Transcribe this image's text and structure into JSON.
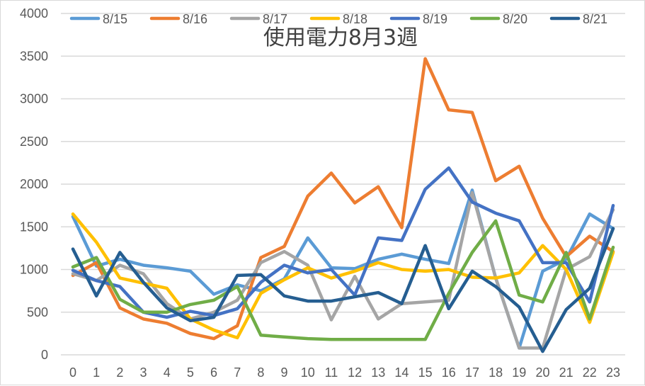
{
  "chart_data": {
    "type": "line",
    "title": "使用電力8月3週",
    "xlabel": "",
    "ylabel": "",
    "categories": [
      "0",
      "1",
      "2",
      "3",
      "4",
      "5",
      "6",
      "7",
      "8",
      "9",
      "10",
      "11",
      "12",
      "13",
      "14",
      "15",
      "16",
      "17",
      "18",
      "19",
      "20",
      "21",
      "22",
      "23"
    ],
    "ylim": [
      0,
      4000
    ],
    "yticks": [
      "0",
      "500",
      "1000",
      "1500",
      "2000",
      "2500",
      "3000",
      "3500",
      "4000"
    ],
    "grid": true,
    "legend_position": "top",
    "series": [
      {
        "name": "8/15",
        "color": "#5B9BD5",
        "values": [
          1620,
          1040,
          1120,
          1050,
          1020,
          980,
          710,
          820,
          750,
          890,
          1370,
          1020,
          1010,
          1120,
          1180,
          1120,
          1070,
          1930,
          900,
          80,
          980,
          1120,
          1650,
          1480
        ]
      },
      {
        "name": "8/16",
        "color": "#ED7D31",
        "values": [
          930,
          1080,
          550,
          420,
          370,
          250,
          190,
          340,
          1140,
          1270,
          1860,
          2130,
          1780,
          1970,
          1490,
          3470,
          2870,
          2840,
          2040,
          2210,
          1600,
          1150,
          1390,
          1210
        ]
      },
      {
        "name": "8/17",
        "color": "#A5A5A5",
        "values": [
          950,
          870,
          1050,
          950,
          600,
          420,
          500,
          640,
          1080,
          1210,
          1050,
          410,
          920,
          420,
          600,
          620,
          640,
          1900,
          900,
          80,
          80,
          1000,
          1150,
          1700
        ]
      },
      {
        "name": "8/18",
        "color": "#FFC000",
        "values": [
          1650,
          1320,
          900,
          840,
          780,
          420,
          290,
          200,
          720,
          880,
          1020,
          900,
          980,
          1080,
          1000,
          980,
          1000,
          910,
          900,
          960,
          1280,
          1000,
          380,
          1200
        ]
      },
      {
        "name": "8/19",
        "color": "#4472C4",
        "values": [
          990,
          870,
          800,
          500,
          440,
          510,
          460,
          540,
          850,
          1050,
          960,
          1000,
          700,
          1370,
          1340,
          1940,
          2190,
          1790,
          1660,
          1570,
          1080,
          1080,
          620,
          1750
        ]
      },
      {
        "name": "8/20",
        "color": "#70AD47",
        "values": [
          1030,
          1140,
          650,
          500,
          500,
          590,
          640,
          800,
          230,
          210,
          190,
          180,
          180,
          180,
          180,
          180,
          720,
          1200,
          1570,
          700,
          620,
          1200,
          420,
          1260
        ]
      },
      {
        "name": "8/21",
        "color": "#255E91",
        "values": [
          1240,
          690,
          1200,
          850,
          550,
          400,
          440,
          930,
          940,
          690,
          630,
          630,
          680,
          730,
          600,
          1280,
          540,
          980,
          800,
          560,
          40,
          530,
          780,
          1480
        ]
      }
    ]
  }
}
